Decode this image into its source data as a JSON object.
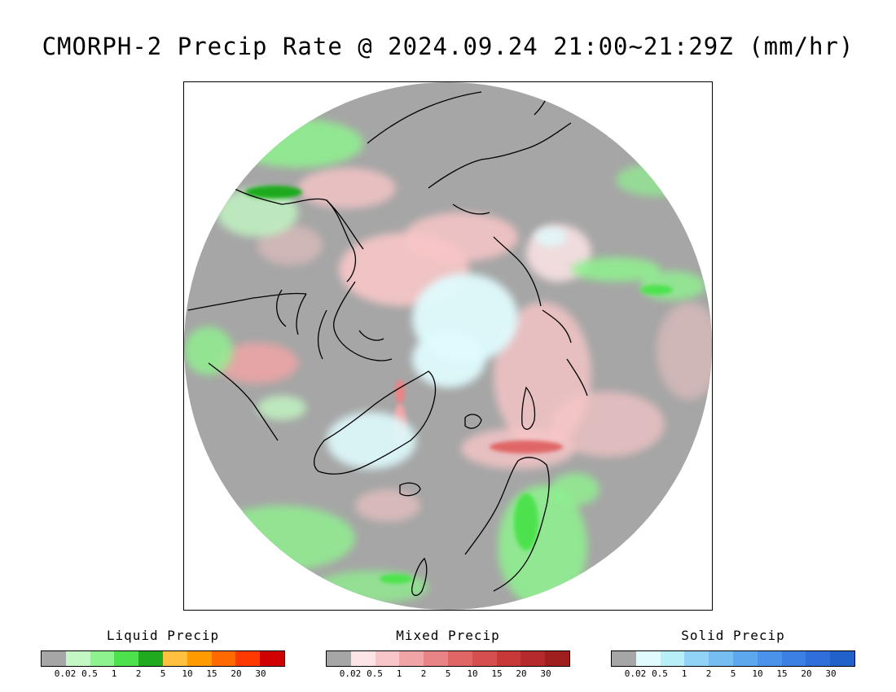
{
  "title": "CMORPH-2 Precip Rate @ 2024.09.24 21:00~21:29Z (mm/hr)",
  "map": {
    "projection": "north-polar-stereographic",
    "colors": {
      "no_data_outside": "#ffffff",
      "background": "#a6a6a6",
      "coastline": "#000000"
    }
  },
  "legends": [
    {
      "title": "Liquid Precip",
      "ticks": [
        "0.02",
        "0.5",
        "1",
        "2",
        "5",
        "10",
        "15",
        "20",
        "30"
      ],
      "colors": [
        "#a6a6a6",
        "#c3f7c3",
        "#8ef28e",
        "#4de24d",
        "#1faa1f",
        "#ffc040",
        "#ff9a00",
        "#ff6a00",
        "#ff3a00",
        "#d10000"
      ]
    },
    {
      "title": "Mixed Precip",
      "ticks": [
        "0.02",
        "0.5",
        "1",
        "2",
        "5",
        "10",
        "15",
        "20",
        "30"
      ],
      "colors": [
        "#a6a6a6",
        "#fde4e6",
        "#f8c6c8",
        "#f0a4a6",
        "#e98486",
        "#e06666",
        "#d54f4f",
        "#c73838",
        "#b52a2a",
        "#9f1f1f"
      ]
    },
    {
      "title": "Solid Precip",
      "ticks": [
        "0.02",
        "0.5",
        "1",
        "2",
        "5",
        "10",
        "15",
        "20",
        "30"
      ],
      "colors": [
        "#a6a6a6",
        "#dffbfd",
        "#b7eef8",
        "#90d3f7",
        "#76bdf2",
        "#5ca7ee",
        "#4b93ea",
        "#3c80e4",
        "#2e6fdb",
        "#2062c9"
      ]
    }
  ]
}
